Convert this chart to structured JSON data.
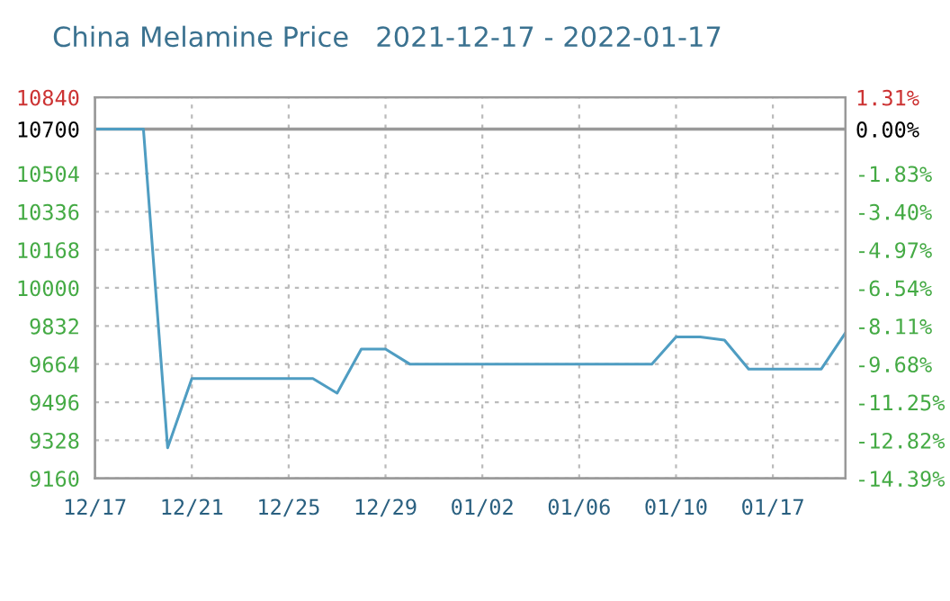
{
  "chart_data": {
    "type": "line",
    "title": "China Melamine Price   2021-12-17 - 2022-01-17",
    "categories": [
      "12/17",
      null,
      null,
      null,
      "12/21",
      null,
      null,
      null,
      "12/25",
      null,
      null,
      null,
      "12/29",
      null,
      null,
      null,
      "01/02",
      null,
      null,
      null,
      "01/06",
      null,
      null,
      null,
      "01/10",
      null,
      null,
      null,
      "01/17",
      null,
      null,
      null
    ],
    "series": [
      {
        "color": "#4f9dc2",
        "values": [
          10700,
          10700,
          10700,
          9295,
          9600,
          9600,
          9600,
          9600,
          9600,
          9600,
          9536,
          9730,
          9730,
          9664,
          9664,
          9664,
          9664,
          9664,
          9664,
          9664,
          9664,
          9664,
          9664,
          9664,
          9784,
          9784,
          9770,
          9642,
          9642,
          9642,
          9642,
          9802
        ]
      }
    ],
    "ylim": [
      9160,
      10840
    ],
    "yticks": [
      9160,
      9328,
      9496,
      9664,
      9832,
      10000,
      10168,
      10336,
      10504,
      10700,
      10840
    ],
    "y2lim": [
      -14.39,
      1.31
    ],
    "y2ticks": [
      {
        "value": -14.39,
        "label": "-14.39%"
      },
      {
        "value": -12.82,
        "label": "-12.82%"
      },
      {
        "value": -11.25,
        "label": "-11.25%"
      },
      {
        "value": -9.68,
        "label": "-9.68%"
      },
      {
        "value": -8.11,
        "label": "-8.11%"
      },
      {
        "value": -6.54,
        "label": "-6.54%"
      },
      {
        "value": -4.97,
        "label": "-4.97%"
      },
      {
        "value": -3.4,
        "label": "-3.40%"
      },
      {
        "value": -1.83,
        "label": "-1.83%"
      },
      {
        "value": 0,
        "label": "0.00%"
      },
      {
        "value": 1.31,
        "label": "1.31%"
      }
    ],
    "ref_lines": [
      {
        "axis": "y",
        "value": 10700,
        "color": "#999999"
      }
    ],
    "grid": true,
    "legend": false,
    "marker": "none",
    "line_style": "solid"
  }
}
